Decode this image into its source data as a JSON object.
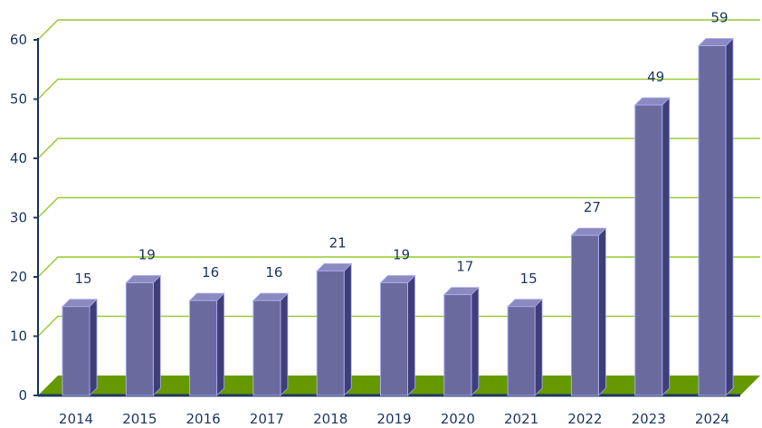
{
  "chart_data": {
    "type": "bar",
    "categories": [
      "2014",
      "2015",
      "2016",
      "2017",
      "2018",
      "2019",
      "2020",
      "2021",
      "2022",
      "2023",
      "2024"
    ],
    "values": [
      15,
      19,
      16,
      16,
      21,
      19,
      17,
      15,
      27,
      49,
      59
    ],
    "title": "",
    "xlabel": "",
    "ylabel": "",
    "ylim": [
      0,
      60
    ],
    "yticks": [
      "0",
      "10",
      "20",
      "30",
      "40",
      "50",
      "60"
    ],
    "grid": true,
    "legend": "none",
    "style": "3d-column",
    "colors": {
      "bar_front": "#6a6a9e",
      "bar_side": "#3e3e78",
      "bar_top": "#8a8ac0",
      "bar_outline": "#a8a8f0",
      "gridline": "#99cc33",
      "floor": "#669900",
      "axis": "#1f3864",
      "text": "#1f3864"
    }
  }
}
